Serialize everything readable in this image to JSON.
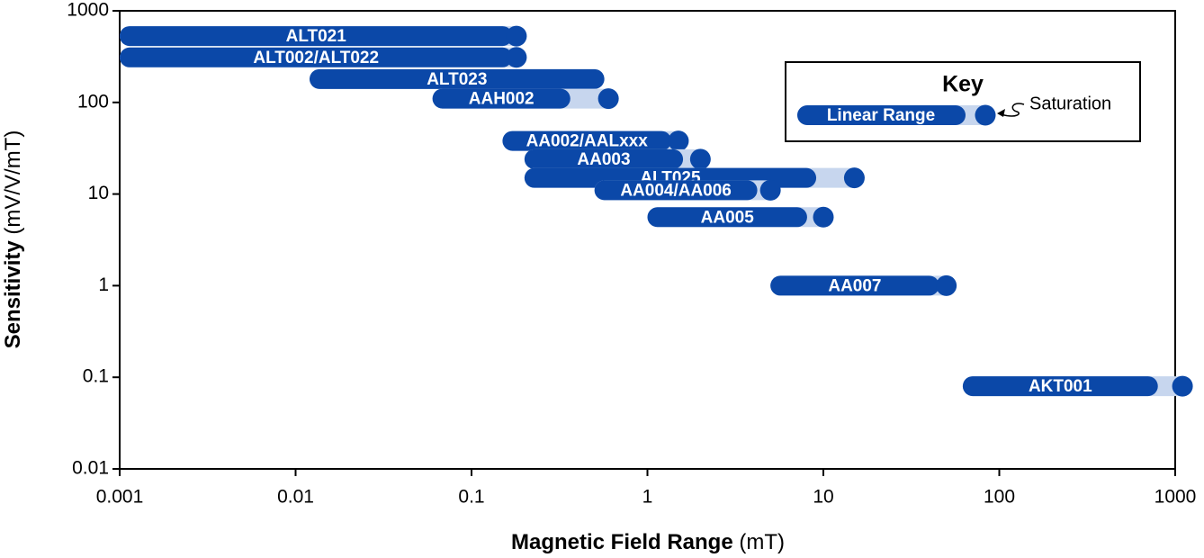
{
  "chart_data": {
    "type": "range",
    "xlabel": {
      "main": "Magnetic Field Range",
      "unit": "(mT)"
    },
    "ylabel": {
      "main": "Sensitivity",
      "unit": "(mV/V/mT)"
    },
    "xscale": "log",
    "yscale": "log",
    "xlim": [
      0.001,
      1000
    ],
    "ylim": [
      0.01,
      1000
    ],
    "xticks": [
      0.001,
      0.01,
      0.1,
      1,
      10,
      100,
      1000
    ],
    "yticks": [
      0.01,
      0.1,
      1,
      10,
      100,
      1000
    ],
    "linear_color": "#0b48a8",
    "saturation_color": "#c7d6ee",
    "key": {
      "title": "Key",
      "linear": "Linear Range",
      "saturation": "Saturation"
    },
    "series": [
      {
        "name": "ALT021",
        "sensitivity": 530,
        "linear": [
          0.001,
          0.15
        ],
        "saturation": 0.18
      },
      {
        "name": "ALT002/ALT022",
        "sensitivity": 310,
        "linear": [
          0.001,
          0.15
        ],
        "saturation": 0.18
      },
      {
        "name": "ALT023",
        "sensitivity": 180,
        "linear": [
          0.012,
          0.5
        ],
        "saturation": null
      },
      {
        "name": "AAH002",
        "sensitivity": 110,
        "linear": [
          0.06,
          0.32
        ],
        "saturation": 0.6
      },
      {
        "name": "AA002/AALxxx",
        "sensitivity": 38,
        "linear": [
          0.15,
          1.2
        ],
        "saturation": 1.5
      },
      {
        "name": "AA003",
        "sensitivity": 24,
        "linear": [
          0.2,
          1.4
        ],
        "saturation": 2
      },
      {
        "name": "ALT025",
        "sensitivity": 15,
        "linear": [
          0.2,
          8
        ],
        "saturation": 15
      },
      {
        "name": "AA004/AA006",
        "sensitivity": 11,
        "linear": [
          0.5,
          3.7
        ],
        "saturation": 5
      },
      {
        "name": "AA005",
        "sensitivity": 5.6,
        "linear": [
          1,
          7.1
        ],
        "saturation": 10
      },
      {
        "name": "AA007",
        "sensitivity": 1,
        "linear": [
          5,
          40
        ],
        "saturation": 50
      },
      {
        "name": "AKT001",
        "sensitivity": 0.08,
        "linear": [
          62,
          700
        ],
        "saturation": 1100
      }
    ]
  }
}
